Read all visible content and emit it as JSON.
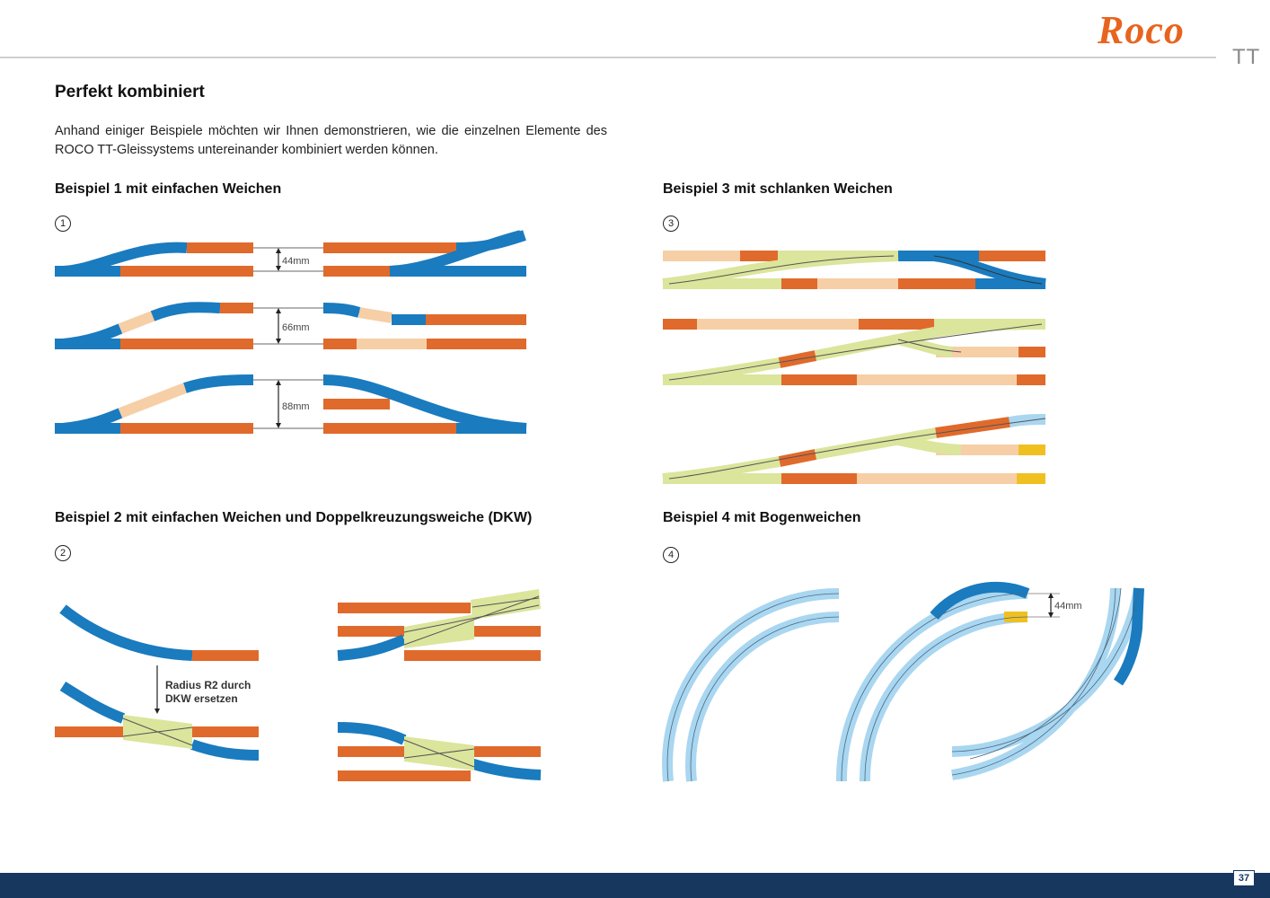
{
  "header": {
    "brand": "Roco",
    "gauge": "TT"
  },
  "page_title": "Perfekt kombiniert",
  "intro": "Anhand einiger Beispiele möchten wir Ihnen demonstrieren, wie die einzelnen Elemente des ROCO TT-Gleissystems untereinander kombiniert werden können.",
  "sections": [
    {
      "number": "1",
      "heading": "Beispiel 1 mit einfachen Weichen",
      "labels": [
        "44mm",
        "66mm",
        "88mm"
      ]
    },
    {
      "number": "2",
      "heading": "Beispiel 2 mit einfachen Weichen und Doppelkreuzungsweiche (DKW)",
      "note_line1": "Radius R2 durch",
      "note_line2": "DKW ersetzen"
    },
    {
      "number": "3",
      "heading": "Beispiel 3 mit schlanken Weichen"
    },
    {
      "number": "4",
      "heading": "Beispiel 4 mit Bogenweichen",
      "label": "44mm"
    }
  ],
  "colors": {
    "blue": "#1a7bbf",
    "orange": "#e06a2b",
    "peach": "#f6cfa6",
    "green": "#dbe59c",
    "lightblue": "#a9d6f0",
    "yellow": "#f0c020",
    "gray": "#9a9a9a"
  },
  "footer": {
    "page_number": "37"
  }
}
